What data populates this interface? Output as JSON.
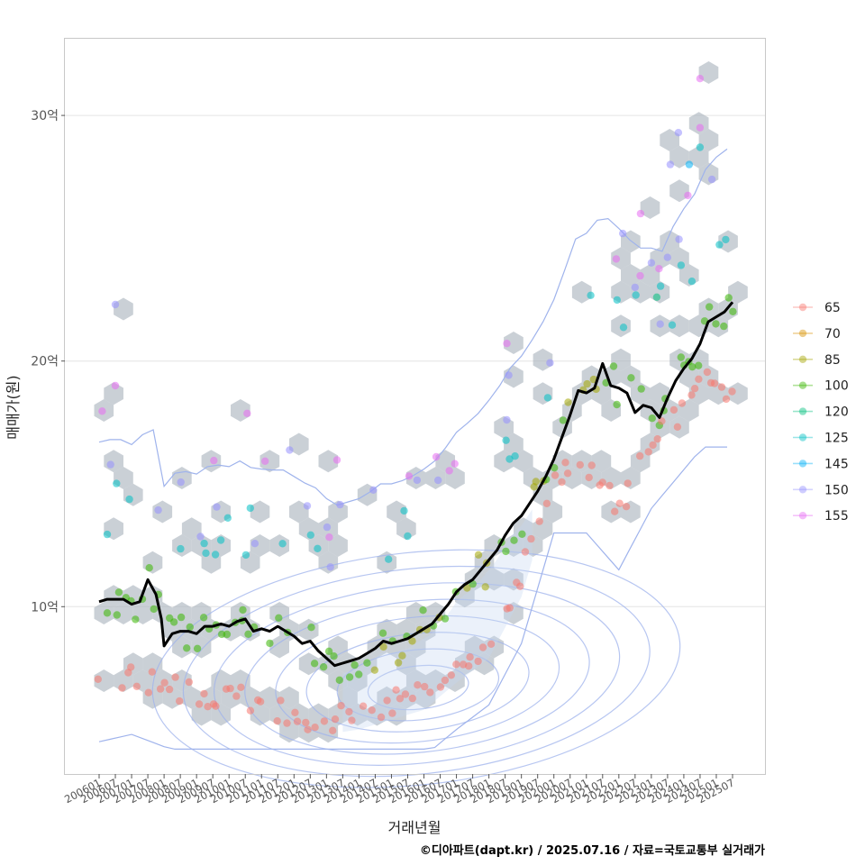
{
  "chart_data": {
    "type": "scatter",
    "xlabel": "거래년월",
    "ylabel": "매매가(원)",
    "caption": "©디아파트(dapt.kr) / 2025.07.16 / 자료=국토교통부 실거래가",
    "y_unit": "억",
    "ylim": [
      3.5,
      33.5
    ],
    "grid": true,
    "legend_position": "right",
    "y_ticks": [
      {
        "value": 10,
        "label": "10억"
      },
      {
        "value": 20,
        "label": "20억"
      },
      {
        "value": 30,
        "label": "30억"
      }
    ],
    "x_ticks": [
      "200601",
      "200607",
      "200701",
      "200707",
      "200801",
      "200807",
      "200901",
      "200907",
      "201001",
      "201007",
      "201101",
      "201107",
      "201201",
      "201207",
      "201301",
      "201307",
      "201401",
      "201407",
      "201501",
      "201507",
      "201601",
      "201607",
      "201701",
      "201707",
      "201801",
      "201807",
      "201901",
      "201907",
      "202001",
      "202007",
      "202101",
      "202107",
      "202201",
      "202207",
      "202301",
      "202307",
      "202401",
      "202407",
      "202501",
      "202507"
    ],
    "legend": [
      {
        "label": "65",
        "color": "#F8766D"
      },
      {
        "label": "70",
        "color": "#D89000"
      },
      {
        "label": "85",
        "color": "#A3A500"
      },
      {
        "label": "100",
        "color": "#39B600"
      },
      {
        "label": "120",
        "color": "#00BF7D"
      },
      {
        "label": "125",
        "color": "#00BFC4"
      },
      {
        "label": "145",
        "color": "#00B0F6"
      },
      {
        "label": "150",
        "color": "#9590FF"
      },
      {
        "label": "155",
        "color": "#E76BF3"
      }
    ],
    "median_line": {
      "color": "#000000",
      "points": [
        [
          "200601",
          10.2
        ],
        [
          "200604",
          10.3
        ],
        [
          "200607",
          10.3
        ],
        [
          "200610",
          10.3
        ],
        [
          "200701",
          10.1
        ],
        [
          "200704",
          10.2
        ],
        [
          "200707",
          11.1
        ],
        [
          "200710",
          10.5
        ],
        [
          "200712",
          9.5
        ],
        [
          "200801",
          8.4
        ],
        [
          "200804",
          8.9
        ],
        [
          "200807",
          9.0
        ],
        [
          "200810",
          9.0
        ],
        [
          "200901",
          8.9
        ],
        [
          "200904",
          9.2
        ],
        [
          "200907",
          9.2
        ],
        [
          "200910",
          9.3
        ],
        [
          "201001",
          9.2
        ],
        [
          "201004",
          9.4
        ],
        [
          "201007",
          9.5
        ],
        [
          "201010",
          9.0
        ],
        [
          "201101",
          9.1
        ],
        [
          "201104",
          9.0
        ],
        [
          "201107",
          9.2
        ],
        [
          "201110",
          9.0
        ],
        [
          "201201",
          8.8
        ],
        [
          "201204",
          8.5
        ],
        [
          "201207",
          8.6
        ],
        [
          "201210",
          8.2
        ],
        [
          "201301",
          7.9
        ],
        [
          "201304",
          7.6
        ],
        [
          "201307",
          7.7
        ],
        [
          "201310",
          7.8
        ],
        [
          "201401",
          7.9
        ],
        [
          "201404",
          8.1
        ],
        [
          "201407",
          8.3
        ],
        [
          "201410",
          8.6
        ],
        [
          "201501",
          8.5
        ],
        [
          "201504",
          8.6
        ],
        [
          "201507",
          8.7
        ],
        [
          "201510",
          8.9
        ],
        [
          "201601",
          9.1
        ],
        [
          "201604",
          9.3
        ],
        [
          "201607",
          9.7
        ],
        [
          "201610",
          10.1
        ],
        [
          "201701",
          10.6
        ],
        [
          "201704",
          10.9
        ],
        [
          "201707",
          11.1
        ],
        [
          "201710",
          11.5
        ],
        [
          "201801",
          11.9
        ],
        [
          "201804",
          12.3
        ],
        [
          "201807",
          12.9
        ],
        [
          "201810",
          13.4
        ],
        [
          "201901",
          13.7
        ],
        [
          "201904",
          14.2
        ],
        [
          "201907",
          14.7
        ],
        [
          "201910",
          15.3
        ],
        [
          "202001",
          16.0
        ],
        [
          "202004",
          16.9
        ],
        [
          "202007",
          17.8
        ],
        [
          "202010",
          18.8
        ],
        [
          "202101",
          18.7
        ],
        [
          "202104",
          18.9
        ],
        [
          "202107",
          19.9
        ],
        [
          "202110",
          19.0
        ],
        [
          "202201",
          18.9
        ],
        [
          "202204",
          18.7
        ],
        [
          "202207",
          17.9
        ],
        [
          "202210",
          18.2
        ],
        [
          "202301",
          18.1
        ],
        [
          "202304",
          17.7
        ],
        [
          "202307",
          18.5
        ],
        [
          "202310",
          19.2
        ],
        [
          "202401",
          19.7
        ],
        [
          "202404",
          20.1
        ],
        [
          "202407",
          20.7
        ],
        [
          "202410",
          21.6
        ],
        [
          "202501",
          21.8
        ],
        [
          "202504",
          22.0
        ],
        [
          "202507",
          22.4
        ]
      ]
    },
    "trend_band_color": "#c7d6f0",
    "hexbin_color": "#aab3bd",
    "density_contour_color": "#9fb3ec"
  }
}
